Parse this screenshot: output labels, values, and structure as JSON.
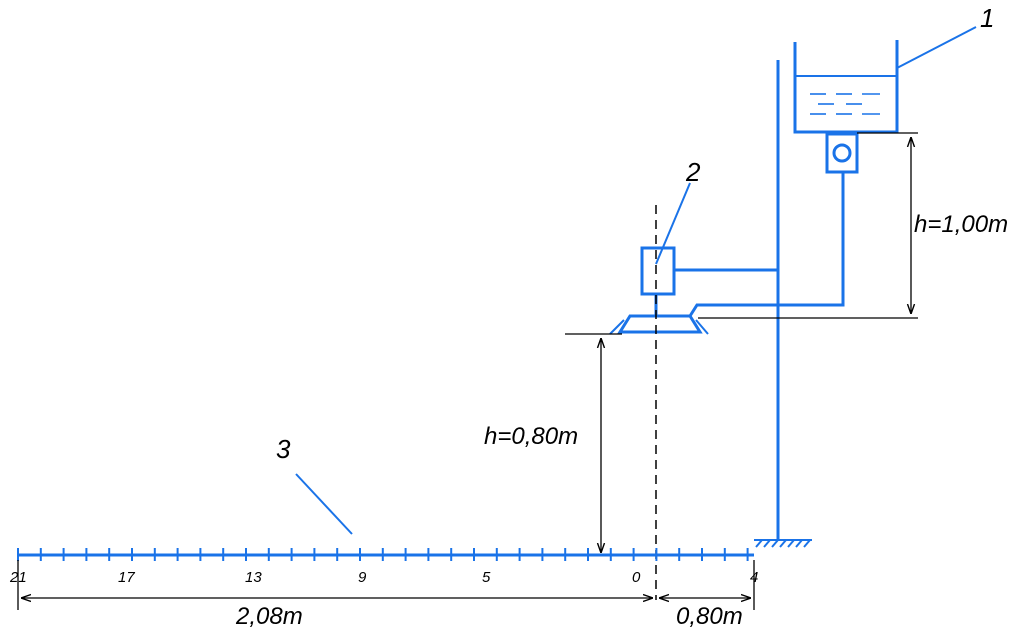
{
  "labels": {
    "callout_1": "1",
    "callout_2": "2",
    "callout_3": "3"
  },
  "dimensions": {
    "tank_height": "h=1,00m",
    "nozzle_height": "h=0,80m",
    "scale_left": "2,08m",
    "scale_right": "0,80m"
  },
  "scale": {
    "tick_labels": [
      "21",
      "17",
      "13",
      "9",
      "5",
      "0",
      "4"
    ]
  },
  "colors": {
    "apparatus": "#1a73e8",
    "dimension_lines": "#000000"
  }
}
